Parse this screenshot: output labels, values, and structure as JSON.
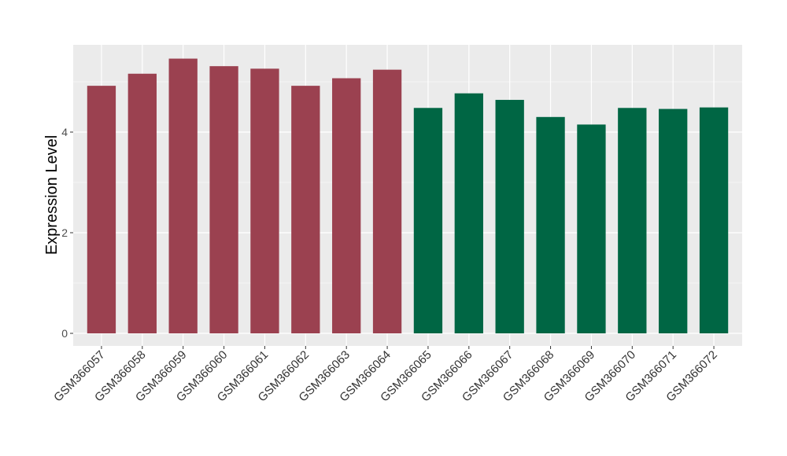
{
  "chart_data": {
    "type": "bar",
    "title": "",
    "xlabel": "",
    "ylabel": "Expression Level",
    "ylim": [
      -0.2,
      5.75
    ],
    "yticks": [
      0,
      2,
      4
    ],
    "grid": true,
    "legend": "none",
    "categories": [
      "GSM366057",
      "GSM366058",
      "GSM366059",
      "GSM366060",
      "GSM366061",
      "GSM366062",
      "GSM366063",
      "GSM366064",
      "GSM366065",
      "GSM366066",
      "GSM366067",
      "GSM366068",
      "GSM366069",
      "GSM366070",
      "GSM366071",
      "GSM366072"
    ],
    "values": [
      4.92,
      5.16,
      5.46,
      5.31,
      5.26,
      4.92,
      5.07,
      5.24,
      4.48,
      4.77,
      4.64,
      4.3,
      4.15,
      4.48,
      4.46,
      4.49
    ],
    "groups": [
      1,
      1,
      1,
      1,
      1,
      1,
      1,
      1,
      2,
      2,
      2,
      2,
      2,
      2,
      2,
      2
    ],
    "colors": {
      "group1": "#9b4150",
      "group2": "#006644",
      "panel": "#ebebeb",
      "grid": "#ffffff"
    }
  }
}
